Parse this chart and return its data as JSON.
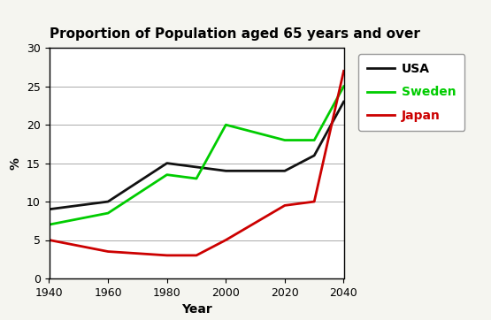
{
  "title": "Proportion of Population aged 65 years and over",
  "xlabel": "Year",
  "ylabel": "%",
  "xlim": [
    1940,
    2040
  ],
  "ylim": [
    0,
    30
  ],
  "xticks": [
    1940,
    1960,
    1980,
    2000,
    2020,
    2040
  ],
  "yticks": [
    0,
    5,
    10,
    15,
    20,
    25,
    30
  ],
  "background_color": "#f5f5f0",
  "plot_bg": "#ffffff",
  "series": {
    "USA": {
      "x": [
        1940,
        1960,
        1980,
        1990,
        2000,
        2020,
        2030,
        2040
      ],
      "y": [
        9,
        10,
        15,
        14.5,
        14,
        14,
        16,
        23
      ],
      "color": "#111111",
      "linewidth": 2.0,
      "linestyle": "-"
    },
    "Sweden": {
      "x": [
        1940,
        1960,
        1980,
        1990,
        2000,
        2020,
        2030,
        2040
      ],
      "y": [
        7,
        8.5,
        13.5,
        13,
        20,
        18,
        18,
        25
      ],
      "color": "#00cc00",
      "linewidth": 2.0,
      "linestyle": "-"
    },
    "Japan": {
      "x": [
        1940,
        1960,
        1980,
        1990,
        2000,
        2020,
        2030,
        2040
      ],
      "y": [
        5,
        3.5,
        3,
        3,
        5,
        9.5,
        10,
        27
      ],
      "color": "#cc0000",
      "linewidth": 2.0,
      "linestyle": "-"
    }
  },
  "legend_labels": [
    "USA",
    "Sweden",
    "Japan"
  ],
  "legend_colors": [
    "#111111",
    "#00cc00",
    "#cc0000"
  ],
  "legend_text_colors": [
    "#000000",
    "#00cc00",
    "#cc0000"
  ],
  "title_fontsize": 11,
  "axis_label_fontsize": 10,
  "tick_fontsize": 9,
  "legend_fontsize": 10
}
